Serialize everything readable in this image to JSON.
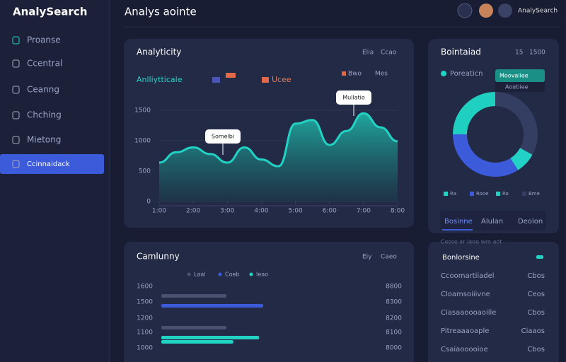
{
  "sidebar": {
    "logo": "AnalySearch",
    "items": [
      "Proanse",
      "Ccentral",
      "Ceanng",
      "Chching",
      "Mietong",
      "Ccinnaidack"
    ],
    "active": 5
  },
  "header": {
    "title": "Analys aointe",
    "user": "AnalySearch"
  },
  "trend_panel": {
    "title": "Analyticity",
    "tabs": [
      "Elia",
      "Ccao"
    ],
    "legend": [
      "Anlliytticale",
      "Ucee"
    ],
    "filters": [
      "Bwo",
      "Mes"
    ],
    "annotations": [
      "Somelbi",
      "Mullatio"
    ],
    "chart_data": {
      "type": "area",
      "color": "#22d3c5",
      "x": [
        0,
        1,
        2,
        3,
        4,
        5,
        6,
        7,
        8,
        9,
        10,
        11,
        12,
        13,
        14
      ],
      "values": [
        640,
        810,
        890,
        780,
        640,
        890,
        690,
        580,
        1280,
        1340,
        930,
        1160,
        1450,
        1220,
        990
      ],
      "xlim": [
        0,
        14
      ],
      "xticks": [
        {
          "value": 0,
          "label": "1:00"
        },
        {
          "value": 2,
          "label": "2:00"
        },
        {
          "value": 4,
          "label": "3:00"
        },
        {
          "value": 6,
          "label": "4:00"
        },
        {
          "value": 8,
          "label": "5:00"
        },
        {
          "value": 10,
          "label": "6:00"
        },
        {
          "value": 12,
          "label": "7:00"
        },
        {
          "value": 14,
          "label": "8:00"
        }
      ],
      "ylim": [
        0,
        1500
      ],
      "yticks": [
        0,
        500,
        1000,
        1500
      ],
      "grid": true
    }
  },
  "share_panel": {
    "title": "Bointaiad",
    "tabs": [
      "15",
      "1500"
    ],
    "legend": "Poreaticn",
    "tooltip": [
      "Moovaliee",
      "Aoatiiee"
    ],
    "chart_data": {
      "type": "pie",
      "values": [
        33,
        8,
        34,
        25
      ],
      "colors": [
        "#343d62",
        "#22d3c5",
        "#3b5bdb",
        "#1fcfbf"
      ],
      "labels": [
        "Ra",
        "Rooe",
        "Ro",
        "Bme"
      ]
    },
    "bottom_tabs": [
      "Bosinne",
      "Alulan",
      "Deolon"
    ]
  },
  "bar_panel": {
    "title": "Camlunny",
    "tabs": [
      "Eiy",
      "Caeo"
    ],
    "chart_data": {
      "type": "hbar",
      "categories": [
        "1600",
        "1500",
        "1200",
        "1100",
        "1000"
      ],
      "right_labels": [
        "8800",
        "8300",
        "8200",
        "8100",
        "8000"
      ],
      "xlim": [
        0,
        100
      ],
      "series": [
        {
          "name": "Laal",
          "color": "#4a5170",
          "values": [
            48,
            0,
            48,
            0,
            0
          ]
        },
        {
          "name": "Coeb",
          "color": "#3b5bdb",
          "values": [
            75,
            0,
            0,
            0,
            0
          ]
        },
        {
          "name": "Ieao",
          "color": "#22d3c5",
          "values": [
            0,
            0,
            72,
            53,
            0
          ]
        }
      ]
    }
  },
  "list_panel": {
    "subtitle": "Cesse ar iaoe wro aot",
    "title": "Bonlorsine",
    "rows": [
      [
        "Ccoomartiiadel",
        "Cbos"
      ],
      [
        "Cloamsoiiivne",
        "Ceos"
      ],
      [
        "Ciasaaoooaoiile",
        "Cbos"
      ],
      [
        "Pitreaaaoaple",
        "Ciaaos"
      ],
      [
        "Csaiaooooioe",
        "Cbos"
      ]
    ]
  }
}
